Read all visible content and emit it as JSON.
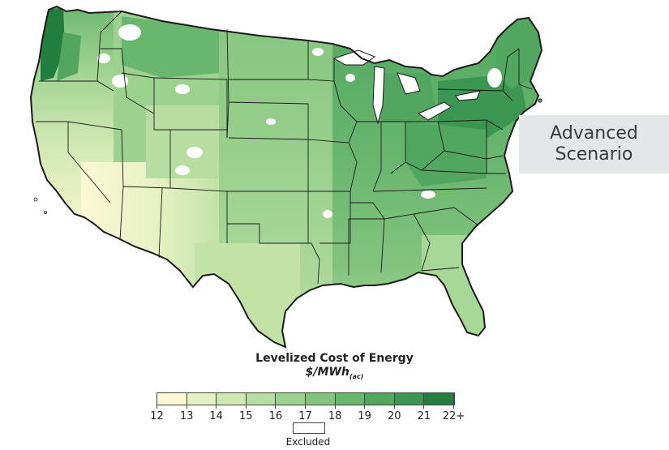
{
  "scenario": {
    "line1": "Advanced",
    "line2": "Scenario",
    "box_color": "#e5e6e8"
  },
  "legend": {
    "title": "Levelized Cost of Energy",
    "unit_main": "$/MWh",
    "unit_sub": "(ac)",
    "ticks": [
      "12",
      "13",
      "14",
      "15",
      "16",
      "17",
      "18",
      "19",
      "20",
      "21",
      "22+"
    ],
    "colors": [
      "#fbf8d6",
      "#e6f1c3",
      "#cfe8b2",
      "#b7dea0",
      "#9dd18f",
      "#83c47f",
      "#69b66f",
      "#51a75f",
      "#3a9650",
      "#227e3f"
    ],
    "excluded_label": "Excluded",
    "excluded_color": "#ffffff"
  },
  "map": {
    "subject": "Contiguous United States",
    "region_shading": {
      "pacific_northwest_coast": "#227e3f",
      "northwest": "#83c47f",
      "california": "#e6f1c3",
      "southwest_desert": "#fbf8d6",
      "great_basin": "#cfe8b2",
      "rockies": "#b7dea0",
      "northern_plains": "#83c47f",
      "central_plains": "#9dd18f",
      "southern_plains": "#b7dea0",
      "midwest": "#69b66f",
      "great_lakes_ohio_valley": "#51a75f",
      "southeast": "#83c47f",
      "gulf_coast": "#9dd18f",
      "florida": "#b7dea0",
      "northeast": "#51a75f",
      "new_england": "#51a75f"
    },
    "excluded_color": "#ffffff",
    "border_color": "#1a1a1a"
  }
}
